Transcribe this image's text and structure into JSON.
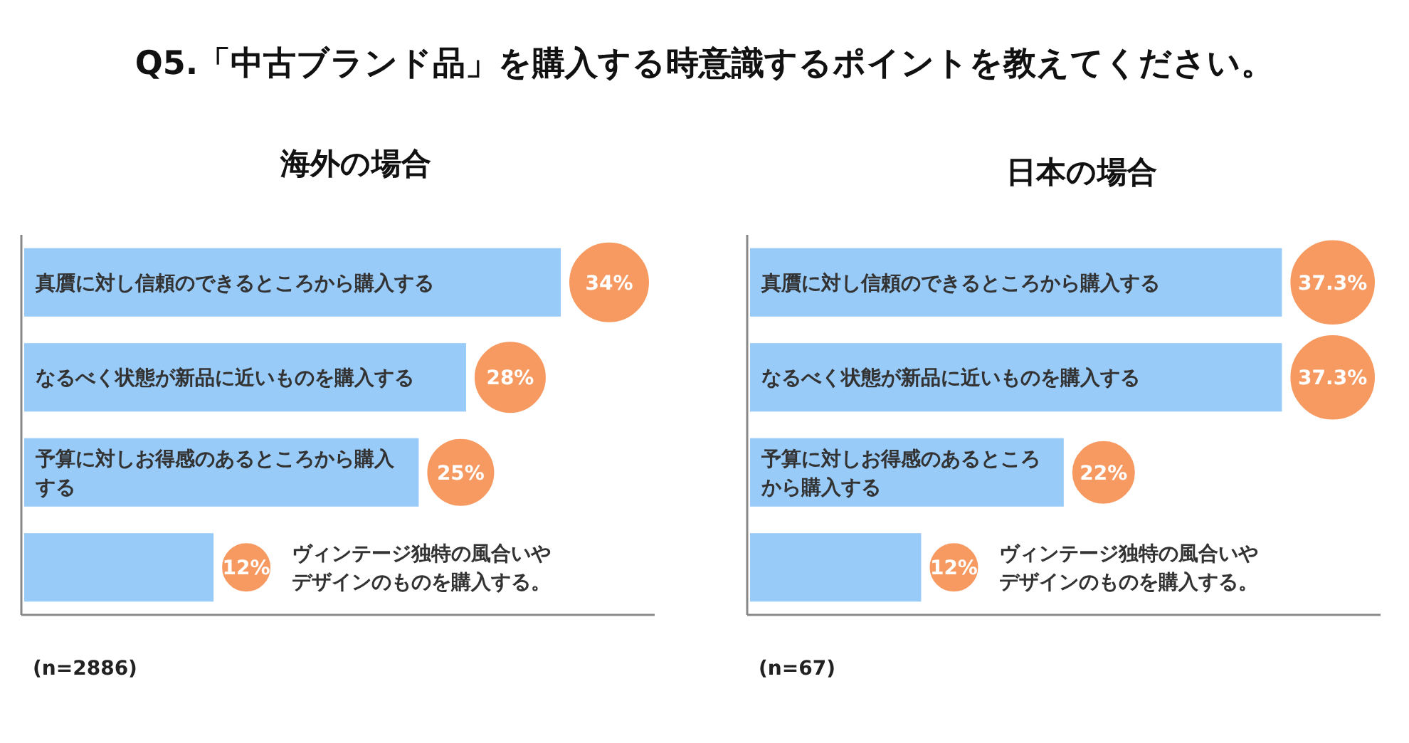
{
  "chart_data": [
    {
      "type": "bar",
      "orientation": "horizontal",
      "title": "海外の場合",
      "annotations": [
        "Q5.「中古ブランド品」を購入する時意識するポイントを教えてください。",
        "(n=2886)"
      ],
      "categories": [
        "真贋に対し信頼のできるところから購入する",
        "なるべく状態が新品に近いものを購入する",
        "予算に対しお得感のあるところから購入する",
        "ヴィンテージ独特の風合いやデザインのものを購入する。"
      ],
      "values": [
        34,
        28,
        25,
        12
      ],
      "value_labels": [
        "34%",
        "28%",
        "25%",
        "12%"
      ],
      "color": "#99cbf9"
    },
    {
      "type": "bar",
      "orientation": "horizontal",
      "title": "日本の場合",
      "annotations": [
        "(n=67)"
      ],
      "categories": [
        "真贋に対し信頼のできるところから購入する",
        "なるべく状態が新品に近いものを購入する",
        "予算に対しお得感のあるところから購入する",
        "ヴィンテージ独特の風合いやデザインのものを購入する。"
      ],
      "values": [
        37.3,
        37.3,
        22,
        12
      ],
      "value_labels": [
        "37.3%",
        "37.3%",
        "22%",
        "12%"
      ],
      "color": "#99cbf9"
    }
  ]
}
